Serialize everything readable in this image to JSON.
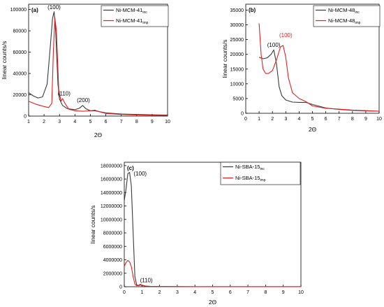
{
  "colors": {
    "inc": "#3a3a3a",
    "imp": "#e32020",
    "axis": "#000000",
    "peak_b_imp_label": "#e32020"
  },
  "chart_data": [
    {
      "type": "line",
      "panel_label": "(a)",
      "xlabel": "2Θ",
      "ylabel": "linear counts/s",
      "xlim": [
        1,
        10
      ],
      "ylim": [
        0,
        105000
      ],
      "x_ticks": [
        1,
        2,
        3,
        4,
        5,
        6,
        7,
        8,
        9,
        10
      ],
      "y_ticks": [
        0,
        20000,
        40000,
        60000,
        80000,
        100000
      ],
      "y_tick_labels": [
        "0",
        "20000",
        "40000",
        "60000",
        "80000",
        "100000"
      ],
      "legend": {
        "placement": "top-right",
        "entries": [
          {
            "base": "Ni-MCM-41",
            "sub": "inc",
            "series": "inc"
          },
          {
            "base": "Ni-MCM-41",
            "sub": "imp",
            "series": "imp"
          }
        ]
      },
      "series": [
        {
          "key": "inc",
          "x": [
            1,
            1.3,
            1.6,
            1.9,
            2.2,
            2.4,
            2.55,
            2.65,
            2.75,
            2.9,
            3.0,
            3.2,
            3.5,
            4.0,
            4.3,
            4.5,
            4.7,
            5.0,
            5.3,
            6,
            7,
            8,
            9,
            10
          ],
          "y": [
            22000,
            19000,
            17000,
            18000,
            30000,
            65000,
            92000,
            98000,
            80000,
            30000,
            16000,
            10000,
            7000,
            6000,
            7500,
            10000,
            7000,
            5000,
            5000,
            3000,
            2000,
            1500,
            1200,
            1000
          ]
        },
        {
          "key": "imp",
          "x": [
            1,
            1.5,
            2.0,
            2.3,
            2.5,
            2.6,
            2.7,
            2.8,
            2.95,
            3.1,
            3.2,
            3.35,
            3.6,
            4.0,
            4.5,
            5.0,
            5.3,
            5.6,
            6,
            7,
            8,
            9,
            10
          ],
          "y": [
            14000,
            11000,
            9000,
            8000,
            12000,
            60000,
            92000,
            80000,
            25000,
            14000,
            16500,
            12000,
            6500,
            5000,
            4500,
            5000,
            5500,
            4000,
            2500,
            1500,
            1000,
            800,
            600
          ]
        }
      ],
      "annotations": [
        {
          "text": "(100)",
          "x": 2.65,
          "y": 100500,
          "color": "axis"
        },
        {
          "text": "(110)",
          "x": 3.3,
          "y": 19500,
          "color": "axis"
        },
        {
          "text": "(200)",
          "x": 4.55,
          "y": 13000,
          "color": "axis"
        }
      ]
    },
    {
      "type": "line",
      "panel_label": "(b)",
      "xlabel": "2Θ",
      "ylabel": "linear counts/s",
      "xlim": [
        0,
        10
      ],
      "ylim": [
        0,
        37000
      ],
      "x_ticks": [
        0,
        1,
        2,
        3,
        4,
        5,
        6,
        7,
        8,
        9,
        10
      ],
      "y_ticks": [
        0,
        5000,
        10000,
        15000,
        20000,
        25000,
        30000,
        35000
      ],
      "y_tick_labels": [
        "0",
        "5000",
        "10000",
        "15000",
        "20000",
        "25000",
        "30000",
        "35000"
      ],
      "legend": {
        "placement": "top-right",
        "entries": [
          {
            "base": "Ni-MCM-48",
            "sub": "inc",
            "series": "inc"
          },
          {
            "base": "Ni-MCM-48",
            "sub": "imp",
            "series": "imp"
          }
        ]
      },
      "series": [
        {
          "key": "inc",
          "x": [
            1.0,
            1.3,
            1.6,
            1.9,
            2.1,
            2.3,
            2.5,
            2.7,
            3.0,
            3.5,
            4.0,
            4.5,
            5.0,
            6,
            7,
            8,
            9,
            10
          ],
          "y": [
            19000,
            18500,
            18800,
            20000,
            21500,
            17000,
            9000,
            6000,
            4500,
            3800,
            3700,
            3700,
            3000,
            1800,
            1300,
            1000,
            800,
            700
          ]
        },
        {
          "key": "imp",
          "x": [
            1.0,
            1.15,
            1.3,
            1.5,
            1.7,
            2.0,
            2.3,
            2.6,
            2.8,
            3.0,
            3.2,
            3.5,
            4.0,
            4.5,
            5.0,
            6,
            7,
            8,
            9,
            10
          ],
          "y": [
            30500,
            20000,
            15000,
            13500,
            13500,
            14500,
            18000,
            22500,
            23000,
            19000,
            12000,
            7000,
            5000,
            4000,
            2500,
            1700,
            1400,
            1100,
            900,
            700
          ]
        }
      ],
      "annotations": [
        {
          "text": "(100)",
          "x": 2.1,
          "y": 22500,
          "color": "axis"
        },
        {
          "text": "(100)",
          "x": 3.0,
          "y": 25800,
          "color": "peak_b_imp_label"
        }
      ]
    },
    {
      "type": "line",
      "panel_label": "(c)",
      "xlabel": "2Θ",
      "ylabel": "linear counts/s",
      "xlim": [
        0,
        10
      ],
      "ylim": [
        0,
        18500000
      ],
      "x_ticks": [
        0,
        1,
        2,
        3,
        4,
        5,
        6,
        7,
        8,
        9,
        10
      ],
      "y_ticks": [
        0,
        2000000,
        4000000,
        6000000,
        8000000,
        10000000,
        12000000,
        14000000,
        16000000,
        18000000
      ],
      "y_tick_labels": [
        "0",
        "2000000",
        "4000000",
        "6000000",
        "8000000",
        "10000000",
        "12000000",
        "14000000",
        "16000000",
        "18000000"
      ],
      "legend": {
        "placement": "top-right",
        "entries": [
          {
            "base": "Ni-SBA-15",
            "sub": "inc",
            "series": "inc"
          },
          {
            "base": "Ni-SBA-15",
            "sub": "imp",
            "series": "imp"
          }
        ]
      },
      "series": [
        {
          "key": "inc",
          "x": [
            0.0,
            0.1,
            0.2,
            0.3,
            0.4,
            0.5,
            0.6,
            0.7,
            0.8,
            0.9,
            1.0,
            1.2,
            1.5,
            2,
            3,
            4,
            5,
            6,
            7,
            8,
            9,
            10
          ],
          "y": [
            12800000,
            14500000,
            16800000,
            17000000,
            15000000,
            8000000,
            1500000,
            300000,
            150000,
            250000,
            200000,
            80000,
            40000,
            30000,
            20000,
            15000,
            12000,
            10000,
            9000,
            8000,
            7000,
            6000
          ]
        },
        {
          "key": "imp",
          "x": [
            0.0,
            0.1,
            0.2,
            0.3,
            0.4,
            0.5,
            0.6,
            0.7,
            0.8,
            0.9,
            1.0,
            1.2,
            1.5,
            2,
            3,
            4,
            5,
            6,
            7,
            8,
            9,
            10
          ],
          "y": [
            3000000,
            3600000,
            3900000,
            3700000,
            3000000,
            1500000,
            400000,
            150000,
            200000,
            350000,
            250000,
            100000,
            40000,
            30000,
            20000,
            15000,
            12000,
            10000,
            9000,
            8000,
            7000,
            6000
          ]
        }
      ],
      "annotations": [
        {
          "text": "(100)",
          "x": 0.9,
          "y": 16500000,
          "color": "axis"
        },
        {
          "text": "(110)",
          "x": 1.25,
          "y": 700000,
          "color": "axis"
        }
      ]
    }
  ]
}
